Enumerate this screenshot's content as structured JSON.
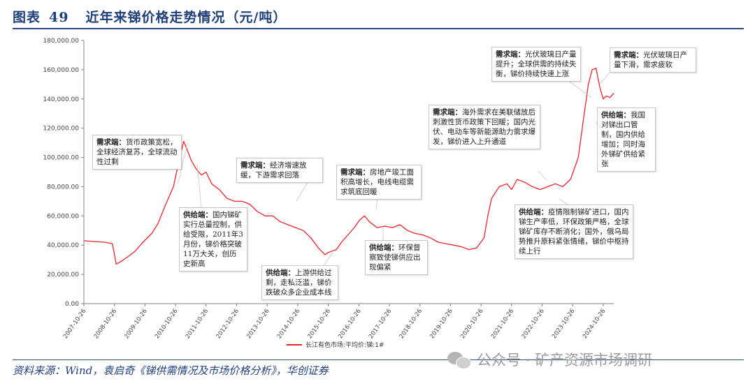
{
  "header": {
    "label": "图表",
    "number": "49",
    "title": "近年来锑价格走势情况（元/吨）"
  },
  "source": "资料来源：Wind，袁启奇《锑供需情况及市场价格分析》，华创证券",
  "watermark": "公众号 · 矿产资源市场调研",
  "colors": {
    "line": "#e8252a",
    "title": "#1f3f7a",
    "axis": "#808080"
  },
  "annotations": [
    {
      "head": "需求端：",
      "text": "货币政策宽松，全球经济复苏，全球流动性过剩"
    },
    {
      "head": "供给端：",
      "text": "国内锑矿实行总量控制，供给受限，2011年3月份，锑价格突破 11万大关，创历史新高"
    },
    {
      "head": "需求端：",
      "text": "经济增速放缓，下游需求回落"
    },
    {
      "head": "供给端：",
      "text": "上游供给过剩，走私泛滥，锑价跌破众多企业成本线"
    },
    {
      "head": "需求端：",
      "text": "房地产竣工面积高增长，电线电缆需求筑底回暖"
    },
    {
      "head": "供给端：",
      "text": "环保督察致使锑供应出现偏紧"
    },
    {
      "head": "需求端：",
      "text": "海外需求在美联储放后刺激性货币政策下回暖；国内光伏、电动车等新能源助力需求爆发，锑价进入上升通道"
    },
    {
      "head": "供给端：",
      "text": "疫情限制锑矿进口，国内锑生产率低，环保政策严格，全球锑矿库存不断消化；国外，俄乌局势推升原料紧张情绪，锑价中枢持续上行"
    },
    {
      "head": "需求端：",
      "text": "光伏玻璃日产量提升；全球供需的持续失衡，锑价持续快速上涨"
    },
    {
      "head": "需求端：",
      "text": "光伏玻璃日产量下滑，需求疲软"
    },
    {
      "head": "供给端：",
      "text": "我国对锑出口管制，国内供给增加；同时海外锑矿供给紧张"
    }
  ],
  "chart_data": {
    "type": "line",
    "title": "",
    "xlabel": "",
    "ylabel": "",
    "ylim": [
      0,
      180000
    ],
    "y_ticks": [
      "0.00",
      "20,000.00",
      "40,000.00",
      "60,000.00",
      "80,000.00",
      "100,000.00",
      "120,000.00",
      "140,000.00",
      "160,000.00",
      "180,000.00"
    ],
    "y_tick_values": [
      0,
      20000,
      40000,
      60000,
      80000,
      100000,
      120000,
      140000,
      160000,
      180000
    ],
    "x_ticks": [
      "2007-10-26",
      "2008-10-26",
      "2009-10-26",
      "2010-10-26",
      "2011-10-26",
      "2012-10-26",
      "2013-10-26",
      "2014-10-26",
      "2015-10-26",
      "2016-10-26",
      "2017-10-26",
      "2018-10-26",
      "2019-10-26",
      "2020-10-26",
      "2021-10-26",
      "2022-10-26",
      "2023-10-26",
      "2024-10-26"
    ],
    "x_start": "2007-10-26",
    "x_end": "2025-03-01",
    "legend_position": "bottom",
    "grid": false,
    "series": [
      {
        "name": "长江有色市场:平均价:锑:1#",
        "color": "#e8252a",
        "x": [
          "2007-10-26",
          "2008-03-01",
          "2008-07-01",
          "2008-10-01",
          "2008-11-15",
          "2009-01-15",
          "2009-04-01",
          "2009-07-01",
          "2009-10-01",
          "2010-01-15",
          "2010-04-01",
          "2010-07-01",
          "2010-10-01",
          "2010-12-15",
          "2011-02-01",
          "2011-03-15",
          "2011-05-01",
          "2011-07-01",
          "2011-09-01",
          "2011-10-26",
          "2012-01-01",
          "2012-04-01",
          "2012-07-01",
          "2012-10-01",
          "2013-01-01",
          "2013-04-01",
          "2013-07-01",
          "2013-10-01",
          "2014-01-01",
          "2014-04-01",
          "2014-07-01",
          "2014-10-01",
          "2015-01-01",
          "2015-04-01",
          "2015-07-01",
          "2015-09-15",
          "2015-10-26",
          "2016-02-01",
          "2016-04-01",
          "2016-07-01",
          "2016-09-01",
          "2016-11-01",
          "2017-01-01",
          "2017-03-01",
          "2017-06-01",
          "2017-09-01",
          "2017-12-01",
          "2018-03-01",
          "2018-06-01",
          "2018-09-01",
          "2018-12-01",
          "2019-03-01",
          "2019-06-01",
          "2019-09-01",
          "2019-12-01",
          "2020-03-01",
          "2020-06-01",
          "2020-09-01",
          "2020-12-01",
          "2021-01-15",
          "2021-03-01",
          "2021-06-01",
          "2021-09-01",
          "2021-10-26",
          "2022-01-01",
          "2022-04-01",
          "2022-07-01",
          "2022-10-01",
          "2023-01-01",
          "2023-04-01",
          "2023-07-01",
          "2023-10-01",
          "2024-01-01",
          "2024-03-01",
          "2024-05-01",
          "2024-06-15",
          "2024-08-01",
          "2024-09-15",
          "2024-10-26",
          "2024-12-01",
          "2025-01-15",
          "2025-03-01"
        ],
        "y": [
          43000,
          42500,
          42000,
          41000,
          27000,
          29000,
          32000,
          36000,
          42000,
          48000,
          55000,
          68000,
          80000,
          100000,
          111000,
          105000,
          98000,
          92000,
          88000,
          90000,
          82000,
          78000,
          72000,
          70000,
          70000,
          68000,
          63000,
          60000,
          60000,
          56000,
          54000,
          52000,
          50000,
          45000,
          38000,
          33500,
          35000,
          37000,
          42000,
          48000,
          52000,
          57000,
          60000,
          56000,
          52000,
          53000,
          52000,
          54000,
          50000,
          48000,
          47000,
          45000,
          42000,
          41000,
          40000,
          39000,
          37000,
          38000,
          45000,
          60000,
          72000,
          80000,
          82000,
          78000,
          85000,
          83000,
          80000,
          78000,
          80000,
          82000,
          80000,
          85000,
          100000,
          125000,
          150000,
          160000,
          161000,
          148000,
          140000,
          142000,
          141000,
          144000
        ]
      }
    ]
  }
}
